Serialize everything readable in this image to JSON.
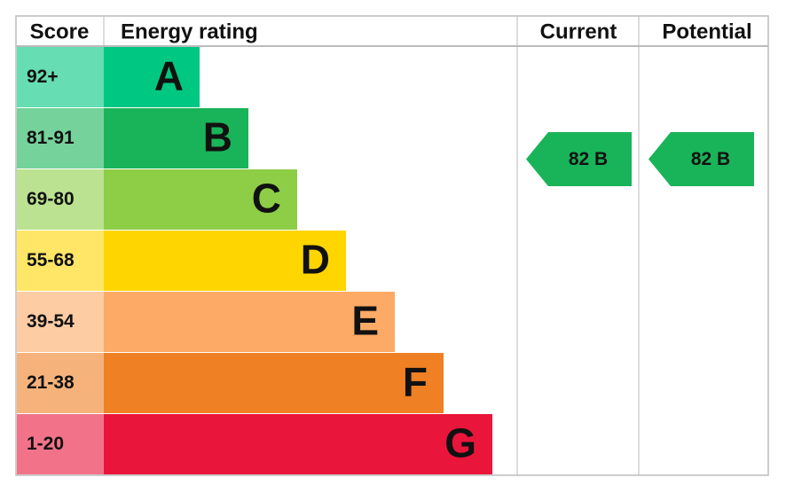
{
  "header": {
    "score": "Score",
    "rating": "Energy rating",
    "current": "Current",
    "potential": "Potential"
  },
  "bands": [
    {
      "score": "92+",
      "letter": "A",
      "color": "#00c781"
    },
    {
      "score": "81-91",
      "letter": "B",
      "color": "#19b459"
    },
    {
      "score": "69-80",
      "letter": "C",
      "color": "#8dce46"
    },
    {
      "score": "55-68",
      "letter": "D",
      "color": "#ffd500"
    },
    {
      "score": "39-54",
      "letter": "E",
      "color": "#fcaa65"
    },
    {
      "score": "21-38",
      "letter": "F",
      "color": "#ef8023"
    },
    {
      "score": "1-20",
      "letter": "G",
      "color": "#e9153b"
    }
  ],
  "current": {
    "label": "82 B",
    "color": "#19b459"
  },
  "potential": {
    "label": "82 B",
    "color": "#19b459"
  }
}
